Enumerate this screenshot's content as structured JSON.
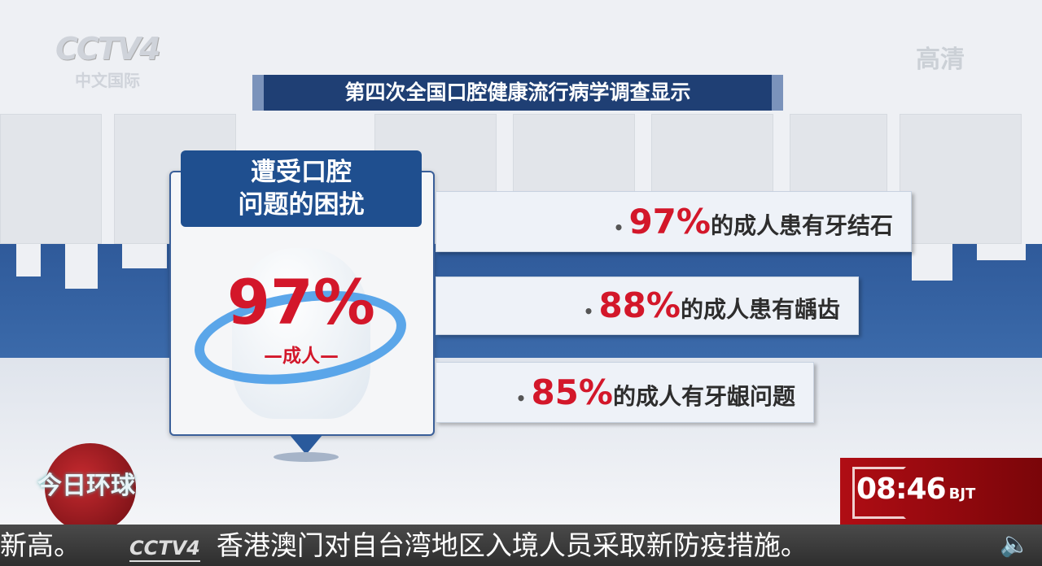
{
  "channel": {
    "logo": "CCTV4",
    "logo_sub": "中文国际",
    "hd_label": "高清"
  },
  "headline": "第四次全国口腔健康流行病学调查显示",
  "card": {
    "title_line1": "遭受口腔",
    "title_line2": "问题的困扰",
    "value": "97%",
    "subject": "—成人—"
  },
  "stats": [
    {
      "percent": "97%",
      "text": "的成人患有牙结石"
    },
    {
      "percent": "88%",
      "text": "的成人患有龋齿"
    },
    {
      "percent": "85%",
      "text": "的成人有牙龈问题"
    }
  ],
  "program": {
    "name": "今日环球"
  },
  "clock": {
    "time": "08:46",
    "zone": "BJT"
  },
  "ticker": {
    "prev": "新高。",
    "logo": "CCTV4",
    "text": "香港澳门对自台湾地区入境人员采取新防疫措施。"
  },
  "colors": {
    "navy": "#1f3f74",
    "accent_red": "#d3172a",
    "ring_blue": "#3f98e6",
    "clock_red": "#b00d14"
  }
}
